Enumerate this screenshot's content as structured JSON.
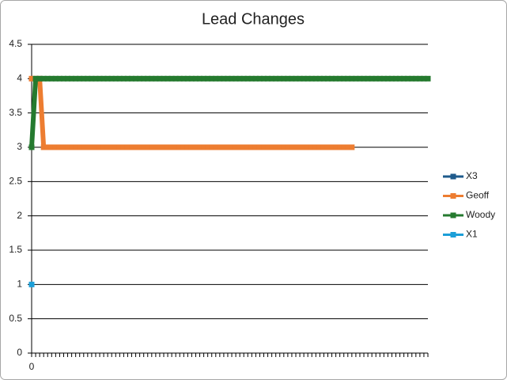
{
  "chart_data": {
    "type": "line",
    "title": "Lead Changes",
    "categories": [
      "0",
      null,
      null,
      null,
      null,
      null,
      null,
      null,
      null,
      null,
      null,
      null,
      null,
      null,
      null,
      null,
      null,
      null,
      null,
      null,
      null,
      null,
      null,
      null,
      null,
      null,
      null,
      null,
      null,
      null,
      null,
      null,
      null,
      null,
      null,
      null,
      null,
      null,
      null,
      null,
      null,
      null,
      null,
      null,
      null,
      null,
      null,
      null,
      null,
      null,
      null,
      null,
      null,
      null,
      null,
      null,
      null,
      null,
      null,
      null,
      null,
      null,
      null,
      null,
      null,
      null,
      null,
      null,
      null,
      null,
      null,
      null,
      null,
      null,
      null,
      null,
      null,
      null,
      null,
      null,
      null,
      null,
      null,
      null,
      null,
      null,
      null,
      null,
      null,
      null,
      null,
      null,
      null,
      null,
      null,
      null,
      null,
      null,
      null,
      null
    ],
    "series": [
      {
        "name": "X3",
        "color": "#1f5b8c",
        "values": [
          null,
          null,
          null,
          null,
          null,
          null,
          null,
          null,
          null,
          null,
          null,
          null,
          null,
          null,
          null,
          null,
          null,
          null,
          null,
          null,
          null,
          null,
          null,
          null,
          null,
          null,
          null,
          null,
          null,
          null,
          null,
          null,
          null,
          null,
          null,
          null,
          null,
          null,
          null,
          null,
          null,
          null,
          null,
          null,
          null,
          null,
          null,
          null,
          null,
          null,
          null,
          null,
          null,
          null,
          null,
          null,
          null,
          null,
          null,
          null,
          null,
          null,
          null,
          null,
          null,
          null,
          null,
          null,
          null,
          null,
          null,
          null,
          null,
          null,
          null,
          null,
          null,
          null,
          null,
          null,
          null,
          null,
          null,
          null,
          null,
          null,
          null,
          null,
          null,
          null,
          null,
          null,
          null,
          null,
          null,
          null,
          null,
          null,
          null,
          null
        ]
      },
      {
        "name": "Geoff",
        "color": "#ed7d31",
        "values": [
          4,
          4,
          4,
          3,
          3,
          3,
          3,
          3,
          3,
          3,
          3,
          3,
          3,
          3,
          3,
          3,
          3,
          3,
          3,
          3,
          3,
          3,
          3,
          3,
          3,
          3,
          3,
          3,
          3,
          3,
          3,
          3,
          3,
          3,
          3,
          3,
          3,
          3,
          3,
          3,
          3,
          3,
          3,
          3,
          3,
          3,
          3,
          3,
          3,
          3,
          3,
          3,
          3,
          3,
          3,
          3,
          3,
          3,
          3,
          3,
          3,
          3,
          3,
          3,
          3,
          3,
          3,
          3,
          3,
          3,
          3,
          3,
          3,
          3,
          3,
          3,
          3,
          3,
          3,
          3,
          3,
          null,
          null,
          null,
          null,
          null,
          null,
          null,
          null,
          null,
          null,
          null,
          null,
          null,
          null,
          null,
          null,
          null,
          null,
          null
        ]
      },
      {
        "name": "Woody",
        "color": "#257a2f",
        "values": [
          3,
          4,
          4,
          4,
          4,
          4,
          4,
          4,
          4,
          4,
          4,
          4,
          4,
          4,
          4,
          4,
          4,
          4,
          4,
          4,
          4,
          4,
          4,
          4,
          4,
          4,
          4,
          4,
          4,
          4,
          4,
          4,
          4,
          4,
          4,
          4,
          4,
          4,
          4,
          4,
          4,
          4,
          4,
          4,
          4,
          4,
          4,
          4,
          4,
          4,
          4,
          4,
          4,
          4,
          4,
          4,
          4,
          4,
          4,
          4,
          4,
          4,
          4,
          4,
          4,
          4,
          4,
          4,
          4,
          4,
          4,
          4,
          4,
          4,
          4,
          4,
          4,
          4,
          4,
          4,
          4,
          4,
          4,
          4,
          4,
          4,
          4,
          4,
          4,
          4,
          4,
          4,
          4,
          4,
          4,
          4,
          4,
          4,
          4,
          4
        ]
      },
      {
        "name": "X1",
        "color": "#1c9fd8",
        "values": [
          1,
          null,
          null,
          null,
          null,
          null,
          null,
          null,
          null,
          null,
          null,
          null,
          null,
          null,
          null,
          null,
          null,
          null,
          null,
          null,
          null,
          null,
          null,
          null,
          null,
          null,
          null,
          null,
          null,
          null,
          null,
          null,
          null,
          null,
          null,
          null,
          null,
          null,
          null,
          null,
          null,
          null,
          null,
          null,
          null,
          null,
          null,
          null,
          null,
          null,
          null,
          null,
          null,
          null,
          null,
          null,
          null,
          null,
          null,
          null,
          null,
          null,
          null,
          null,
          null,
          null,
          null,
          null,
          null,
          null,
          null,
          null,
          null,
          null,
          null,
          null,
          null,
          null,
          null,
          null,
          null,
          null,
          null,
          null,
          null,
          null,
          null,
          null,
          null,
          null,
          null,
          null,
          null,
          null,
          null,
          null,
          null,
          null,
          null,
          null
        ]
      }
    ],
    "ylim": [
      0,
      4.5
    ],
    "yticks": [
      0,
      0.5,
      1,
      1.5,
      2,
      2.5,
      3,
      3.5,
      4,
      4.5
    ],
    "grid": true,
    "legend": "right"
  }
}
